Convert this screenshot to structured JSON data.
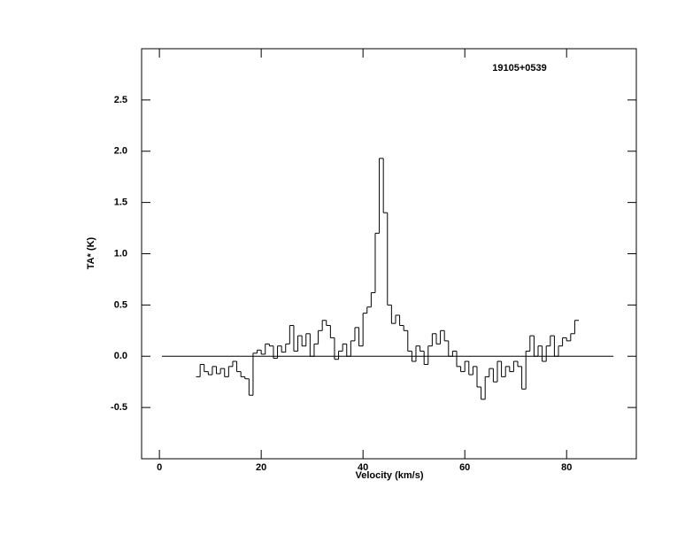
{
  "chart_data": {
    "type": "step",
    "annotation": "19105+0539",
    "x_label": "Velocity (km/s)",
    "y_label": "TA* (K)",
    "xlim": [
      -3.5,
      93.7
    ],
    "ylim": [
      -1,
      3
    ],
    "xticks": [
      0,
      20,
      40,
      60,
      80
    ],
    "yticks": [
      -0.5,
      {
        "value": 0,
        "label": "0.0"
      },
      0.5,
      {
        "value": 1,
        "label": "1.0"
      },
      1.5,
      {
        "value": 2,
        "label": "2.0"
      },
      2.5
    ],
    "baseline": {
      "x": [
        0.5,
        89.2
      ],
      "y": 0
    },
    "color": "#000000",
    "x": [
      7.6,
      8.4,
      9.2,
      10.0,
      10.8,
      11.6,
      12.4,
      13.2,
      14.0,
      14.8,
      15.6,
      16.4,
      17.2,
      18.0,
      18.8,
      19.6,
      20.4,
      21.2,
      22.0,
      22.8,
      23.6,
      24.4,
      25.2,
      26.0,
      26.8,
      27.6,
      28.4,
      29.2,
      30.0,
      30.8,
      31.6,
      32.4,
      33.2,
      34.0,
      34.8,
      35.6,
      36.4,
      37.2,
      38.0,
      38.8,
      39.6,
      40.4,
      41.2,
      42.0,
      42.8,
      43.6,
      44.4,
      45.2,
      46.0,
      46.8,
      47.6,
      48.4,
      49.2,
      50.0,
      50.8,
      51.6,
      52.4,
      53.2,
      54.0,
      54.8,
      55.6,
      56.4,
      57.2,
      58.0,
      58.8,
      59.6,
      60.4,
      61.2,
      62.0,
      62.8,
      63.6,
      64.4,
      65.2,
      66.0,
      66.8,
      67.6,
      68.4,
      69.2,
      70.0,
      70.8,
      71.6,
      72.4,
      73.2,
      74.0,
      74.8,
      75.6,
      76.4,
      77.2,
      78.0,
      78.8,
      79.6,
      80.4,
      81.2,
      82.0
    ],
    "values": [
      -0.2,
      -0.08,
      -0.15,
      -0.18,
      -0.1,
      -0.17,
      -0.12,
      -0.2,
      -0.1,
      -0.05,
      -0.15,
      -0.2,
      -0.22,
      -0.38,
      0.03,
      0.06,
      0.02,
      0.12,
      0.1,
      -0.02,
      0.1,
      0.04,
      0.12,
      0.3,
      0.05,
      0.2,
      0.1,
      0.22,
      0.0,
      0.12,
      0.25,
      0.35,
      0.3,
      0.18,
      -0.03,
      0.05,
      0.12,
      0.0,
      0.15,
      0.28,
      0.1,
      0.42,
      0.48,
      0.62,
      1.2,
      1.93,
      1.4,
      0.5,
      0.32,
      0.4,
      0.3,
      0.25,
      0.05,
      -0.05,
      0.1,
      0.05,
      -0.08,
      0.1,
      0.22,
      0.12,
      0.25,
      0.15,
      0.0,
      0.05,
      -0.1,
      -0.15,
      -0.05,
      -0.18,
      -0.1,
      -0.3,
      -0.42,
      -0.2,
      -0.12,
      -0.25,
      -0.05,
      -0.2,
      -0.1,
      -0.15,
      -0.05,
      -0.1,
      -0.32,
      0.05,
      0.2,
      0.0,
      0.1,
      -0.05,
      0.1,
      0.2,
      0.0,
      0.1,
      0.18,
      0.15,
      0.22,
      0.35
    ]
  }
}
